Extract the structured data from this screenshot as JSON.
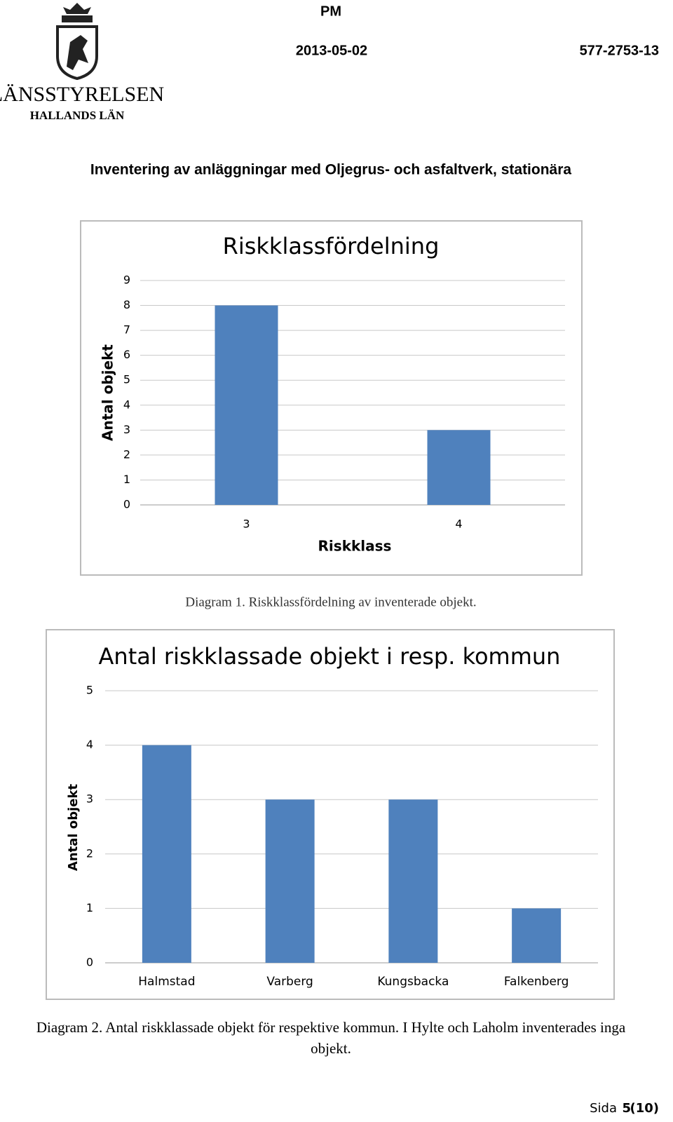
{
  "header": {
    "org": "LÄNSSTYRELSEN",
    "region": "HALLANDS LÄN",
    "doc_type": "PM",
    "date": "2013-05-02",
    "reference": "577-2753-13"
  },
  "heading": "Inventering av anläggningar med Oljegrus- och asfaltverk, stationära",
  "chart_data": [
    {
      "type": "bar",
      "title": "Riskklassfördelning",
      "x_label": "Riskklass",
      "y_label": "Antal objekt",
      "categories": [
        "3",
        "4"
      ],
      "values": [
        8,
        3
      ],
      "color": "#4f81bd",
      "ylim": [
        0,
        9
      ],
      "yticks": [
        0,
        1,
        2,
        3,
        4,
        5,
        6,
        7,
        8,
        9
      ],
      "grid": true
    },
    {
      "type": "bar",
      "title": "Antal riskklassade objekt i resp. kommun",
      "y_label": "Antal objekt",
      "categories": [
        "Halmstad",
        "Varberg",
        "Kungsbacka",
        "Falkenberg"
      ],
      "values": [
        4,
        3,
        3,
        1
      ],
      "color": "#4f81bd",
      "ylim": [
        0,
        5
      ],
      "yticks": [
        0,
        1,
        2,
        3,
        4,
        5
      ],
      "grid": true
    }
  ],
  "captions": [
    "Diagram 1. Riskklassfördelning av inventerade objekt.",
    "Diagram 2. Antal riskklassade objekt för respektive kommun. I Hylte och Laholm inventerades inga",
    "objekt."
  ],
  "footer": {
    "label": "Sida",
    "page": "5",
    "total": "(10)"
  }
}
